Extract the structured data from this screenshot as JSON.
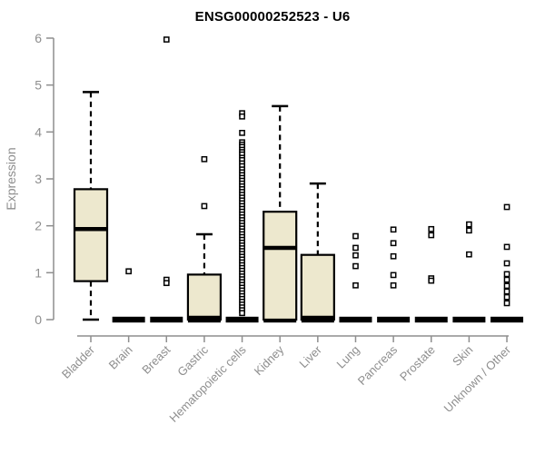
{
  "colors": {
    "box_fill": "#EDE8CE",
    "box_stroke": "#000000",
    "axis": "#8E8E8E",
    "title_text": "#000000"
  },
  "chart_data": {
    "type": "boxplot",
    "title": "ENSG00000252523 - U6",
    "xlabel": "",
    "ylabel": "Expression",
    "ylim": [
      0,
      6
    ],
    "y_ticks": [
      0,
      1,
      2,
      3,
      4,
      5,
      6
    ],
    "grid": false,
    "legend": false,
    "categories": [
      "Bladder",
      "Brain",
      "Breast",
      "Gastric",
      "Hematopoietic cells",
      "Kidney",
      "Liver",
      "Lung",
      "Pancreas",
      "Prostate",
      "Skin",
      "Unknown / Other"
    ],
    "boxes": [
      {
        "category": "Bladder",
        "low": 0,
        "q1": 0.82,
        "median": 1.93,
        "q3": 2.78,
        "high": 4.85,
        "outliers": []
      },
      {
        "category": "Brain",
        "low": 0,
        "q1": 0,
        "median": 0,
        "q3": 0,
        "high": 0,
        "outliers": [
          1.03
        ]
      },
      {
        "category": "Breast",
        "low": 0,
        "q1": 0,
        "median": 0,
        "q3": 0,
        "high": 0,
        "outliers": [
          5.97,
          0.85,
          0.78
        ]
      },
      {
        "category": "Gastric",
        "low": 0,
        "q1": 0,
        "median": 0.02,
        "q3": 0.96,
        "high": 1.82,
        "outliers": [
          3.42,
          2.42
        ]
      },
      {
        "category": "Hematopoietic cells",
        "low": 0,
        "q1": 0,
        "median": 0,
        "q3": 0,
        "high": 0,
        "outliers": [
          4.4,
          4.33,
          3.98,
          3.78,
          3.73,
          3.68,
          3.62,
          3.57,
          3.52,
          3.45,
          3.4,
          3.33,
          3.27,
          3.2,
          3.14,
          3.08,
          3.02,
          2.96,
          2.9,
          2.84,
          2.78,
          2.72,
          2.66,
          2.6,
          2.54,
          2.48,
          2.42,
          2.36,
          2.3,
          2.24,
          2.18,
          2.12,
          2.06,
          2.0,
          1.94,
          1.88,
          1.82,
          1.76,
          1.7,
          1.64,
          1.58,
          1.52,
          1.46,
          1.4,
          1.34,
          1.28,
          1.22,
          1.16,
          1.1,
          1.04,
          0.98,
          0.92,
          0.86,
          0.8,
          0.74,
          0.68,
          0.62,
          0.56,
          0.5,
          0.44,
          0.38,
          0.32,
          0.26,
          0.2,
          0.14
        ]
      },
      {
        "category": "Kidney",
        "low": 0,
        "q1": 0,
        "median": 1.53,
        "q3": 2.3,
        "high": 4.55,
        "outliers": []
      },
      {
        "category": "Liver",
        "low": 0,
        "q1": 0,
        "median": 0.02,
        "q3": 1.38,
        "high": 2.9,
        "outliers": []
      },
      {
        "category": "Lung",
        "low": 0,
        "q1": 0,
        "median": 0,
        "q3": 0,
        "high": 0,
        "outliers": [
          1.78,
          1.53,
          1.37,
          1.14,
          0.73
        ]
      },
      {
        "category": "Pancreas",
        "low": 0,
        "q1": 0,
        "median": 0,
        "q3": 0,
        "high": 0,
        "outliers": [
          1.92,
          1.63,
          1.35,
          0.95,
          0.73
        ]
      },
      {
        "category": "Prostate",
        "low": 0,
        "q1": 0,
        "median": 0,
        "q3": 0,
        "high": 0,
        "outliers": [
          1.93,
          1.8,
          0.88,
          0.83
        ]
      },
      {
        "category": "Skin",
        "low": 0,
        "q1": 0,
        "median": 0,
        "q3": 0,
        "high": 0,
        "outliers": [
          2.03,
          1.9,
          1.39
        ]
      },
      {
        "category": "Unknown / Other",
        "low": 0,
        "q1": 0,
        "median": 0,
        "q3": 0,
        "high": 0,
        "outliers": [
          2.4,
          1.55,
          1.2,
          0.97,
          0.85,
          0.72,
          0.6,
          0.48,
          0.35
        ]
      }
    ]
  }
}
